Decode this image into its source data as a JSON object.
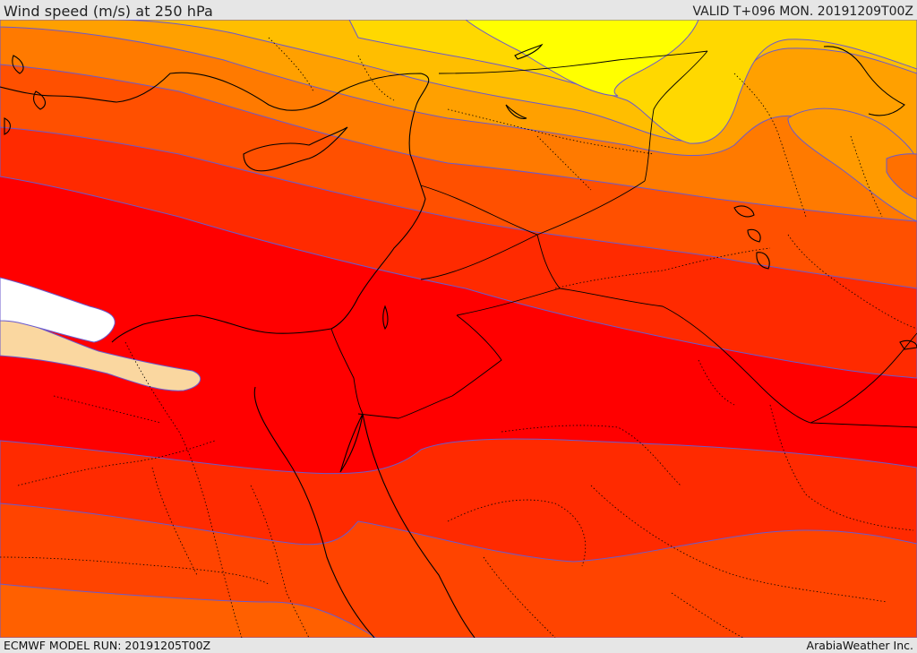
{
  "header": {
    "title": "Wind speed (m/s) at 250 hPa",
    "valid": "VALID T+096 MON. 20191209T00Z"
  },
  "footer": {
    "model_run": "ECMWF MODEL RUN: 20191205T00Z",
    "credit": "ArabiaWeather Inc."
  },
  "colors": {
    "very_light": "#ffffff",
    "light": "#fad7a0",
    "yellow": "#ffff00",
    "gold": "#ffe000",
    "amber": "#ffb800",
    "orange": "#ff8c00",
    "dark_orange": "#ff6a00",
    "red_orange": "#ff3c00",
    "red": "#ff0000",
    "isotach_line": "#6a5acd",
    "coast_line": "#000000",
    "border_line": "#000000"
  }
}
